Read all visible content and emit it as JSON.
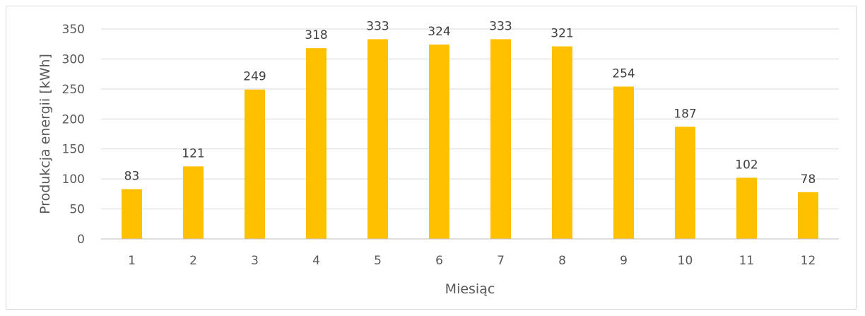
{
  "chart_data": {
    "type": "bar",
    "title": "",
    "xlabel": "Miesiąc",
    "ylabel": "Produkcja energii [kWh]",
    "categories": [
      "1",
      "2",
      "3",
      "4",
      "5",
      "6",
      "7",
      "8",
      "9",
      "10",
      "11",
      "12"
    ],
    "values": [
      83,
      121,
      249,
      318,
      333,
      324,
      333,
      321,
      254,
      187,
      102,
      78
    ],
    "ylim": [
      0,
      350
    ],
    "yticks": [
      0,
      50,
      100,
      150,
      200,
      250,
      300,
      350
    ],
    "grid": true,
    "legend": "none",
    "bar_color": "#FFC000",
    "grid_color": "#d9d9d9"
  }
}
